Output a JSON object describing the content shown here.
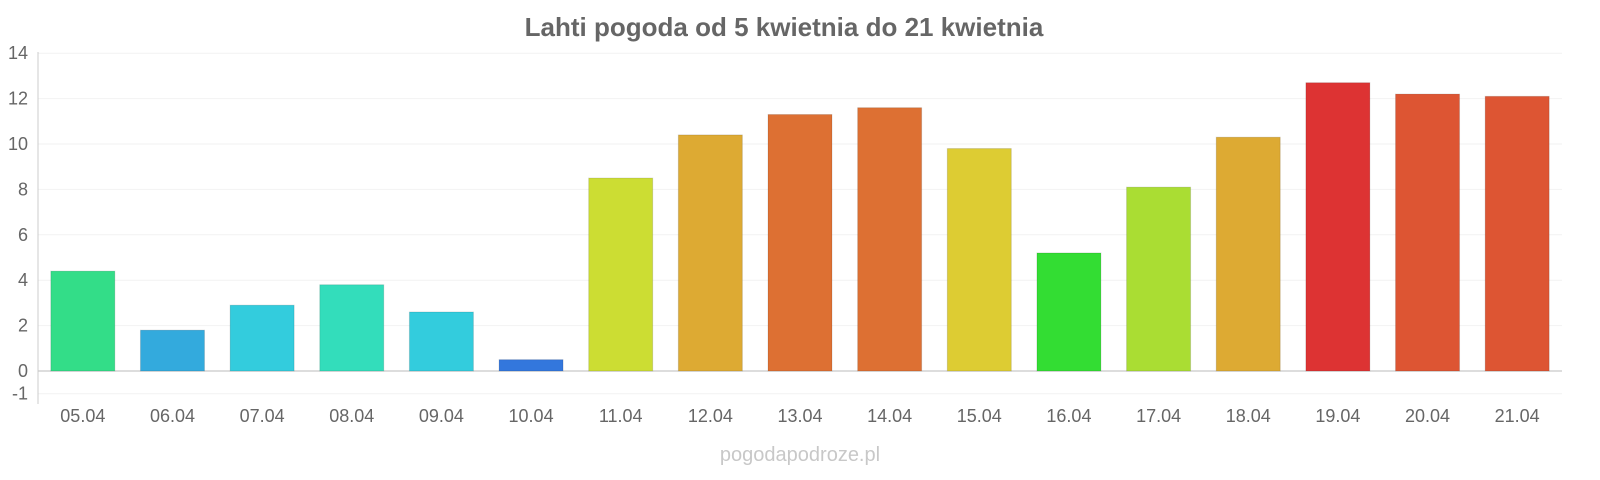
{
  "chart_data": {
    "type": "bar",
    "title": "Lahti pogoda od 5 kwietnia do 21 kwietnia",
    "xlabel": "",
    "ylabel": "",
    "ylim": [
      -1,
      14
    ],
    "yticks": [
      -1,
      0,
      2,
      4,
      6,
      8,
      10,
      12,
      14
    ],
    "grid": true,
    "categories": [
      "05.04",
      "06.04",
      "07.04",
      "08.04",
      "09.04",
      "10.04",
      "11.04",
      "12.04",
      "13.04",
      "14.04",
      "15.04",
      "16.04",
      "17.04",
      "18.04",
      "19.04",
      "20.04",
      "21.04"
    ],
    "values": [
      4.4,
      1.8,
      2.9,
      3.8,
      2.6,
      0.5,
      8.5,
      10.4,
      11.3,
      11.6,
      9.8,
      5.2,
      8.1,
      10.3,
      12.7,
      12.2,
      12.1
    ],
    "colors": [
      "#33dd88",
      "#33aadd",
      "#33ccdd",
      "#33ddbb",
      "#33ccdd",
      "#3377dd",
      "#ccdd33",
      "#ddaa33",
      "#dd7033",
      "#dd7033",
      "#ddcc33",
      "#33dd33",
      "#aadd33",
      "#ddaa33",
      "#dd3333",
      "#dd5533",
      "#dd5533"
    ]
  },
  "footer": "pogodapodroze.pl"
}
